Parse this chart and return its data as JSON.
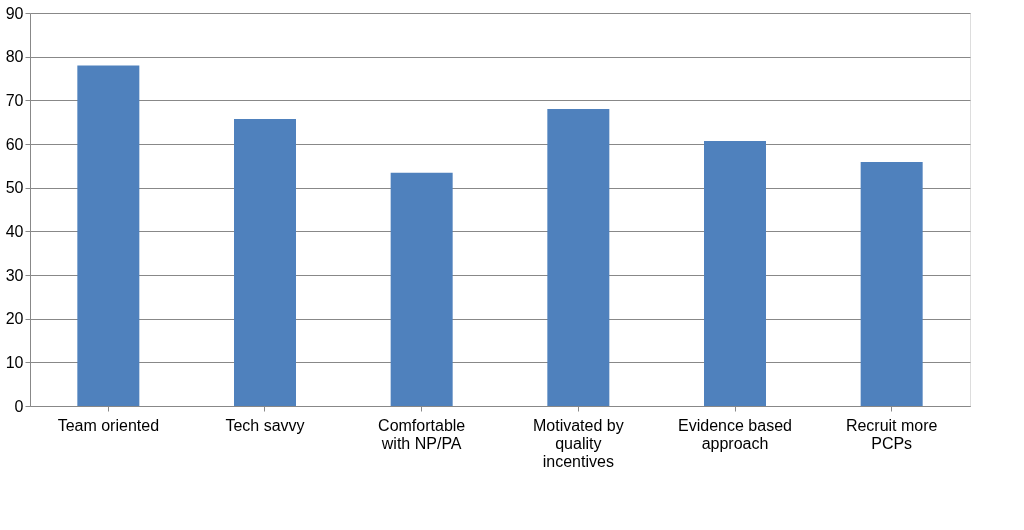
{
  "chart_data": {
    "type": "bar",
    "categories": [
      "Team oriented",
      "Tech savvy",
      "Comfortable with NP/PA",
      "Motivated by quality incentives",
      "Evidence based approach",
      "Recruit more PCPs"
    ],
    "values": [
      78,
      65.7,
      53.4,
      68,
      60.7,
      55.9
    ],
    "color": "#4f81bd",
    "ylim": [
      0,
      90
    ],
    "yticks": [
      0,
      10,
      20,
      30,
      40,
      50,
      60,
      70,
      80,
      90
    ],
    "grid": "y"
  }
}
